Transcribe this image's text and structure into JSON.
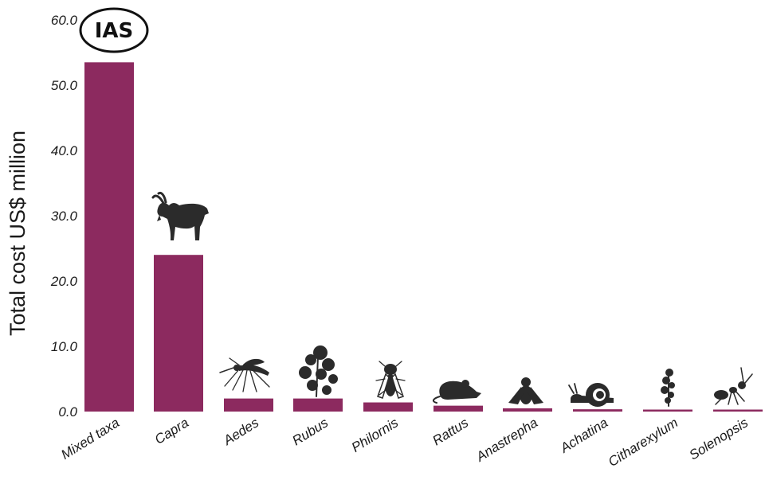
{
  "chart_data": {
    "type": "bar",
    "categories": [
      "Mixed taxa",
      "Capra",
      "Aedes",
      "Rubus",
      "Philornis",
      "Rattus",
      "Anastrepha",
      "Achatina",
      "Citharexylum",
      "Solenopsis"
    ],
    "values": [
      53.5,
      24.0,
      2.0,
      2.0,
      1.4,
      0.9,
      0.5,
      0.35,
      0.2,
      0.2
    ],
    "ylabel": "Total cost US$ million",
    "yticks": [
      "0.0",
      "10.0",
      "20.0",
      "30.0",
      "40.0",
      "50.0",
      "60.0"
    ],
    "ylim": [
      0,
      60
    ],
    "bar_color": "#8c2a5f",
    "grid": false,
    "annotation": "IAS",
    "icons": [
      "ias-badge",
      "goat-icon",
      "mosquito-icon",
      "bramble-icon",
      "fly-icon",
      "rat-icon",
      "fruit-fly-icon",
      "snail-icon",
      "fiddlewood-icon",
      "ant-icon"
    ]
  }
}
